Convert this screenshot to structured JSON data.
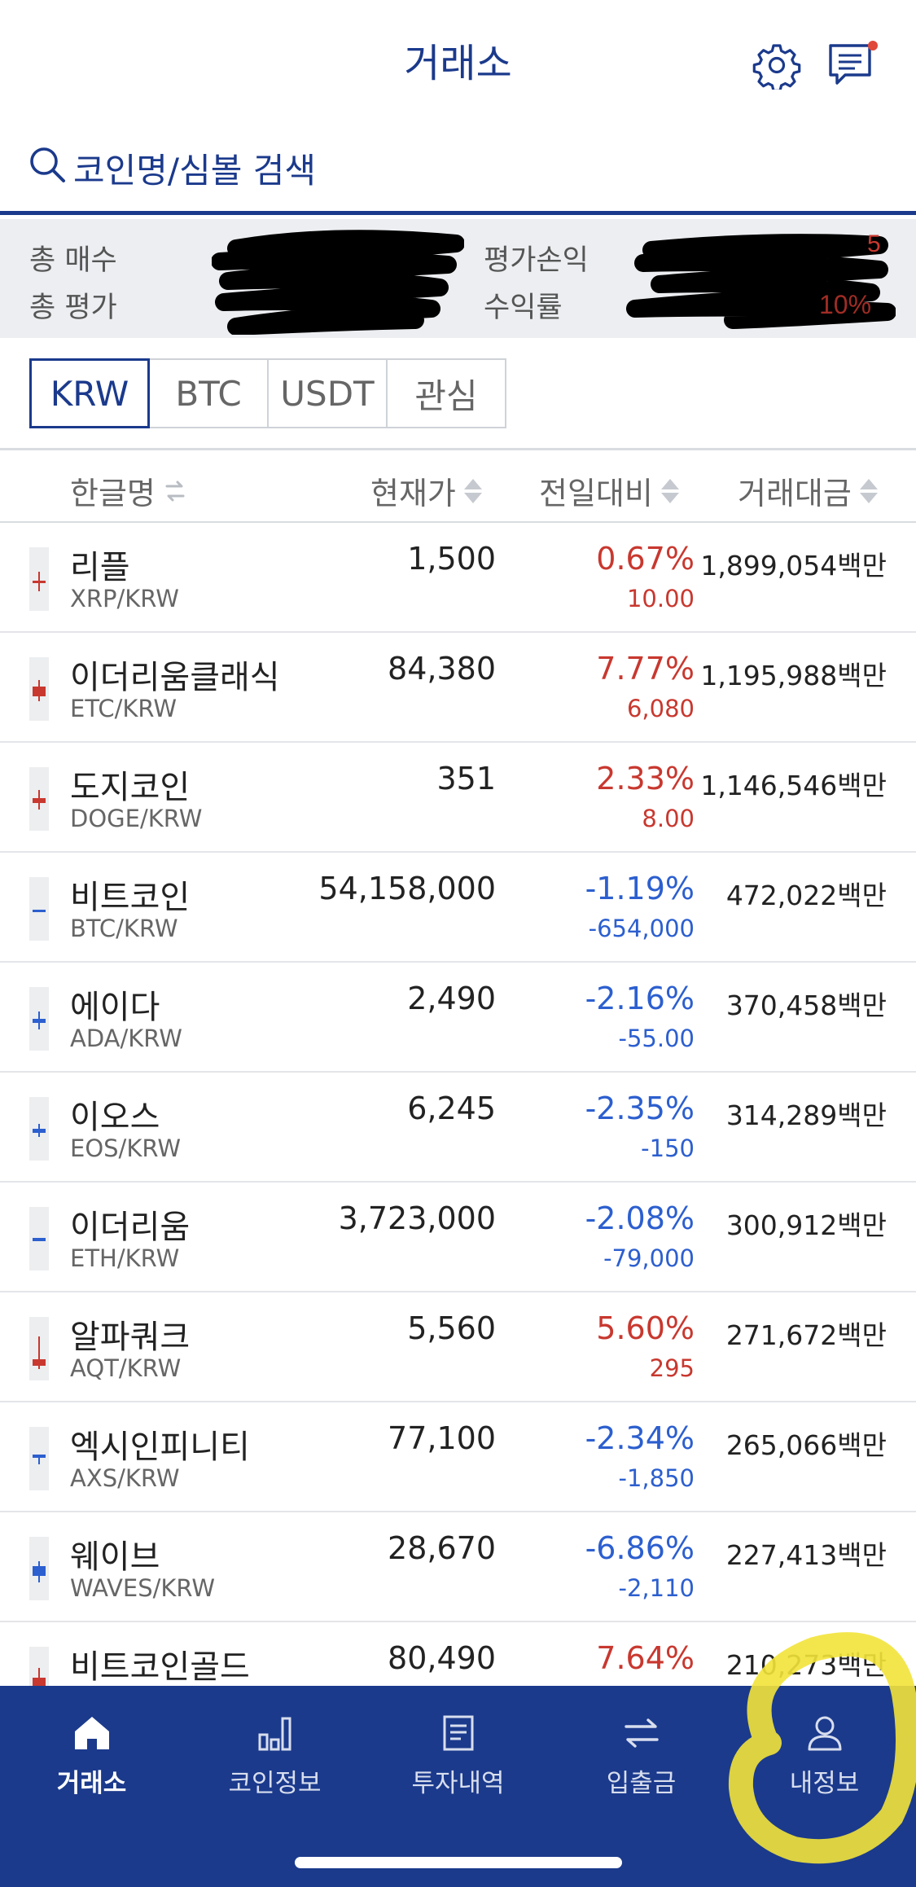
{
  "header": {
    "title": "거래소"
  },
  "search": {
    "placeholder": "코인명/심볼 검색"
  },
  "summary": {
    "total_buy_label": "총 매수",
    "total_eval_label": "총 평가",
    "pnl_label": "평가손익",
    "return_label": "수익률"
  },
  "market_tabs": [
    "KRW",
    "BTC",
    "USDT",
    "관심"
  ],
  "columns": {
    "name": "한글명",
    "price": "현재가",
    "change": "전일대비",
    "volume": "거래대금"
  },
  "coins": [
    {
      "name": "리플",
      "symbol": "XRP/KRW",
      "price": "1,500",
      "change_pct": "0.67%",
      "change_abs": "10.00",
      "volume": "1,899,054백만",
      "direction": "up"
    },
    {
      "name": "이더리움클래식",
      "symbol": "ETC/KRW",
      "price": "84,380",
      "change_pct": "7.77%",
      "change_abs": "6,080",
      "volume": "1,195,988백만",
      "direction": "up"
    },
    {
      "name": "도지코인",
      "symbol": "DOGE/KRW",
      "price": "351",
      "change_pct": "2.33%",
      "change_abs": "8.00",
      "volume": "1,146,546백만",
      "direction": "up"
    },
    {
      "name": "비트코인",
      "symbol": "BTC/KRW",
      "price": "54,158,000",
      "change_pct": "-1.19%",
      "change_abs": "-654,000",
      "volume": "472,022백만",
      "direction": "down"
    },
    {
      "name": "에이다",
      "symbol": "ADA/KRW",
      "price": "2,490",
      "change_pct": "-2.16%",
      "change_abs": "-55.00",
      "volume": "370,458백만",
      "direction": "down"
    },
    {
      "name": "이오스",
      "symbol": "EOS/KRW",
      "price": "6,245",
      "change_pct": "-2.35%",
      "change_abs": "-150",
      "volume": "314,289백만",
      "direction": "down"
    },
    {
      "name": "이더리움",
      "symbol": "ETH/KRW",
      "price": "3,723,000",
      "change_pct": "-2.08%",
      "change_abs": "-79,000",
      "volume": "300,912백만",
      "direction": "down"
    },
    {
      "name": "알파쿼크",
      "symbol": "AQT/KRW",
      "price": "5,560",
      "change_pct": "5.60%",
      "change_abs": "295",
      "volume": "271,672백만",
      "direction": "up"
    },
    {
      "name": "엑시인피니티",
      "symbol": "AXS/KRW",
      "price": "77,100",
      "change_pct": "-2.34%",
      "change_abs": "-1,850",
      "volume": "265,066백만",
      "direction": "down"
    },
    {
      "name": "웨이브",
      "symbol": "WAVES/KRW",
      "price": "28,670",
      "change_pct": "-6.86%",
      "change_abs": "-2,110",
      "volume": "227,413백만",
      "direction": "down"
    },
    {
      "name": "비트코인골드",
      "symbol": "",
      "price": "80,490",
      "change_pct": "7.64%",
      "change_abs": "",
      "volume": "210,273백만",
      "direction": "up"
    }
  ],
  "bottom_nav": [
    {
      "label": "거래소",
      "icon": "home-icon",
      "active": true
    },
    {
      "label": "코인정보",
      "icon": "bar-chart-icon",
      "active": false
    },
    {
      "label": "투자내역",
      "icon": "document-icon",
      "active": false
    },
    {
      "label": "입출금",
      "icon": "transfer-icon",
      "active": false
    },
    {
      "label": "내정보",
      "icon": "user-icon",
      "active": false
    }
  ],
  "colors": {
    "brand": "#1b3a8c",
    "up": "#c8382f",
    "down": "#2c5fcf",
    "highlight": "#f2e33a"
  }
}
